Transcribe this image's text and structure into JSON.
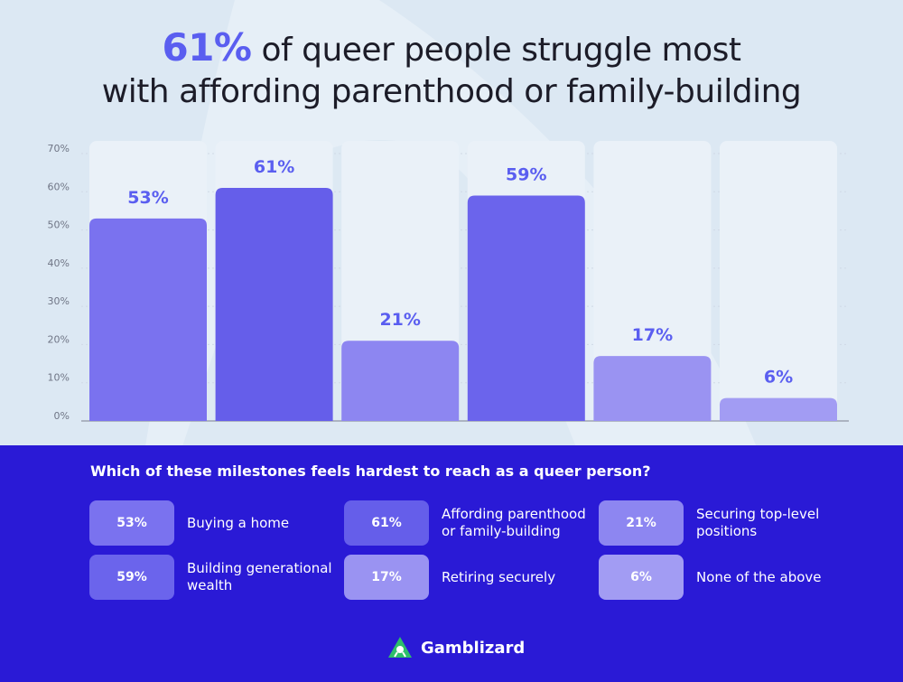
{
  "title": {
    "highlight": "61%",
    "line1_rest": "of queer people struggle most",
    "line2": "with affording parenthood or family-building"
  },
  "chart_data": {
    "type": "bar",
    "categories": [
      "Buying a home",
      "Affording parenthood or family-building",
      "Securing top-level positions",
      "Building generational wealth",
      "Retiring securely",
      "None of the above"
    ],
    "values": [
      53,
      61,
      21,
      59,
      17,
      6
    ],
    "data_labels": [
      "53%",
      "61%",
      "21%",
      "59%",
      "17%",
      "6%"
    ],
    "bar_colors": [
      "#7a72ef",
      "#655eea",
      "#8d86f1",
      "#6b64ec",
      "#9a93f2",
      "#a29cf3"
    ],
    "yticks": [
      "0%",
      "10%",
      "20%",
      "30%",
      "40%",
      "50%",
      "60%",
      "70%"
    ],
    "ylim": [
      0,
      70
    ],
    "grid": true
  },
  "question": "Which of these milestones feels hardest to reach as a queer person?",
  "legend": [
    {
      "pct": "53%",
      "label": "Buying a home",
      "color": "#7a72ef"
    },
    {
      "pct": "61%",
      "label": "Affording parenthood or family-building",
      "color": "#655eea"
    },
    {
      "pct": "21%",
      "label": "Securing top-level positions",
      "color": "#8d86f1"
    },
    {
      "pct": "59%",
      "label": "Building generational wealth",
      "color": "#6b64ec"
    },
    {
      "pct": "17%",
      "label": "Retiring securely",
      "color": "#9a93f2"
    },
    {
      "pct": "6%",
      "label": "None of the above",
      "color": "#a29cf3"
    }
  ],
  "brand": {
    "name": "Gamblizard",
    "logo_icon": "lizard-icon",
    "accent": "#2dbf6a"
  },
  "colors": {
    "accent": "#5a5ef0",
    "footer_bg": "#2a1ad6",
    "page_bg": "#dce8f3"
  }
}
